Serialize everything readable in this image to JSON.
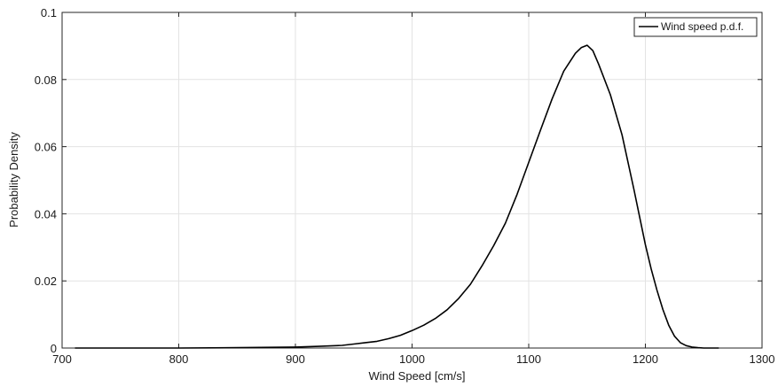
{
  "chart_data": {
    "type": "line",
    "xlabel": "Wind Speed [cm/s]",
    "ylabel": "Probability Density",
    "xlim": [
      700,
      1300
    ],
    "ylim": [
      0,
      0.1
    ],
    "xticks": [
      700,
      800,
      900,
      1000,
      1100,
      1200,
      1300
    ],
    "yticks": [
      0,
      0.02,
      0.04,
      0.06,
      0.08,
      0.1
    ],
    "xtick_labels": [
      "700",
      "800",
      "900",
      "1000",
      "1100",
      "1200",
      "1300"
    ],
    "ytick_labels": [
      "0",
      "0.02",
      "0.04",
      "0.06",
      "0.08",
      "0.1"
    ],
    "grid": true,
    "legend_position": "top-right",
    "series": [
      {
        "name": "Wind speed p.d.f.",
        "color": "#000000",
        "x": [
          711,
          750,
          800,
          850,
          880,
          900,
          920,
          940,
          950,
          960,
          970,
          980,
          990,
          1000,
          1010,
          1020,
          1030,
          1040,
          1050,
          1060,
          1070,
          1080,
          1090,
          1100,
          1110,
          1120,
          1130,
          1140,
          1145,
          1150,
          1155,
          1160,
          1170,
          1180,
          1190,
          1200,
          1205,
          1210,
          1215,
          1220,
          1225,
          1230,
          1235,
          1240,
          1245,
          1250,
          1263
        ],
        "y": [
          0,
          0,
          0,
          0.0001,
          0.0002,
          0.0003,
          0.0005,
          0.0008,
          0.0012,
          0.0016,
          0.002,
          0.0028,
          0.0038,
          0.0052,
          0.0068,
          0.0088,
          0.0114,
          0.0148,
          0.019,
          0.0245,
          0.0305,
          0.0372,
          0.0458,
          0.0553,
          0.0648,
          0.0742,
          0.0825,
          0.0878,
          0.0895,
          0.0902,
          0.0886,
          0.0845,
          0.0755,
          0.0635,
          0.0475,
          0.0308,
          0.0235,
          0.0172,
          0.0115,
          0.0068,
          0.0035,
          0.0016,
          0.0007,
          0.0003,
          0.0001,
          0,
          0
        ]
      }
    ]
  }
}
